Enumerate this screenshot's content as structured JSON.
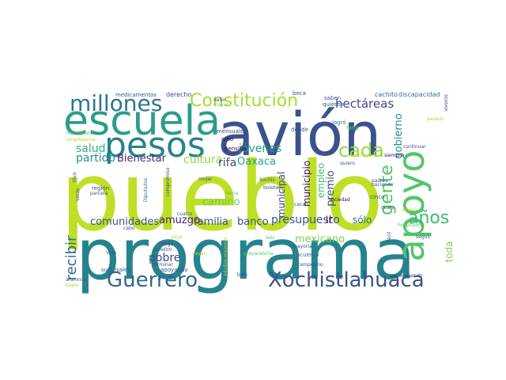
{
  "wordcloud": {
    "words": [
      {
        "text": "pueblo",
        "color": "#bddf26"
      },
      {
        "text": "programa",
        "color": "#25838e"
      },
      {
        "text": "avión",
        "color": "#3b528b"
      },
      {
        "text": "escuela",
        "color": "#2a9d8a"
      },
      {
        "text": "pesos",
        "color": "#25838e"
      },
      {
        "text": "apoyo",
        "color": "#52c569"
      },
      {
        "text": "millones",
        "color": "#2a788e"
      },
      {
        "text": "Constitución",
        "color": "#a8db34"
      },
      {
        "text": "Xochistlahuaca",
        "color": "#3b528b"
      },
      {
        "text": "Guerrero",
        "color": "#31688e"
      },
      {
        "text": "cada",
        "color": "#95d840"
      },
      {
        "text": "gente",
        "color": "#52c569"
      },
      {
        "text": "años",
        "color": "#3fbc73"
      },
      {
        "text": "recibir",
        "color": "#31688e"
      },
      {
        "text": "hectáreas",
        "color": "#3e4a89"
      },
      {
        "text": "cultura",
        "color": "#8fd744"
      },
      {
        "text": "partido",
        "color": "#21918c"
      },
      {
        "text": "Bienestar",
        "color": "#482576"
      },
      {
        "text": "salud",
        "color": "#2db27d"
      },
      {
        "text": "jóvenes",
        "color": "#1f9e89"
      },
      {
        "text": "Oaxaca",
        "color": "#22a884"
      },
      {
        "text": "rifa",
        "color": "#3e4a89"
      },
      {
        "text": "familia",
        "color": "#3e4a89"
      },
      {
        "text": "camino",
        "color": "#6ccd5a"
      },
      {
        "text": "amuzgo",
        "color": "#482475"
      },
      {
        "text": "comunidades",
        "color": "#3b528b"
      },
      {
        "text": "banco",
        "color": "#3b528b"
      },
      {
        "text": "presupuesto",
        "color": "#3b528b"
      },
      {
        "text": "pobre",
        "color": "#3e4a89"
      },
      {
        "text": "mexicano",
        "color": "#7ad151"
      },
      {
        "text": "sólo",
        "color": "#2c728e"
      },
      {
        "text": "ir",
        "color": "#440154"
      },
      {
        "text": "premio",
        "color": "#3b528b"
      },
      {
        "text": "municipal",
        "color": "#3e4a89"
      },
      {
        "text": "municipio",
        "color": "#471365"
      },
      {
        "text": "empleo",
        "color": "#3fbc73"
      },
      {
        "text": "gobierno",
        "color": "#21918c"
      },
      {
        "text": "toda",
        "color": "#7ad151"
      },
      {
        "text": "cachito",
        "color": "#31688e"
      },
      {
        "text": "discapacidad",
        "color": "#2c728e"
      },
      {
        "text": "derecho",
        "color": "#3e4a89"
      },
      {
        "text": "medicamentos",
        "color": "#3b528b"
      },
      {
        "text": "saben",
        "color": "#3b528b"
      },
      {
        "text": "quieren",
        "color": "#3b528b"
      },
      {
        "text": "beca",
        "color": "#3b528b"
      },
      {
        "text": "dónde",
        "color": "#3b528b"
      },
      {
        "text": "logró",
        "color": "#2a788e"
      },
      {
        "text": "falta",
        "color": "#52c569"
      },
      {
        "text": "pensión",
        "color": "#440154"
      },
      {
        "text": "mensuales",
        "color": "#3e4a89"
      },
      {
        "text": "mayor",
        "color": "#7ad151"
      },
      {
        "text": "niño",
        "color": "#440154"
      },
      {
        "text": "helicóptero",
        "color": "#52c569"
      },
      {
        "text": "empresarios",
        "color": "#b5de2b"
      },
      {
        "text": "región",
        "color": "#3e4a89"
      },
      {
        "text": "parcela",
        "color": "#3b528b"
      },
      {
        "text": "Diputados",
        "color": "#2c728e"
      },
      {
        "text": "compromiso",
        "color": "#3e4a89"
      },
      {
        "text": "mujer",
        "color": "#3b528b"
      },
      {
        "text": "tierra",
        "color": "#52c569"
      },
      {
        "text": "Xochis",
        "color": "#3b528b"
      },
      {
        "text": "boletos",
        "color": "#3b528b"
      },
      {
        "text": "quiero",
        "color": "#3b528b"
      },
      {
        "text": "sociedad",
        "color": "#440154"
      },
      {
        "text": "padres",
        "color": "#3b528b"
      },
      {
        "text": "haciendo",
        "color": "#3b528b"
      },
      {
        "text": "cinco",
        "color": "#3b528b"
      },
      {
        "text": "gusto",
        "color": "#3b528b"
      },
      {
        "text": "continuar",
        "color": "#3b528b"
      },
      {
        "text": "siempre",
        "color": "#440154"
      },
      {
        "text": "viveros",
        "color": "#3e4a89"
      },
      {
        "text": "recibiendo",
        "color": "#3b528b"
      },
      {
        "text": "estudiantes",
        "color": "#c2df23"
      },
      {
        "text": "hospitales",
        "color": "#52c569"
      },
      {
        "text": "dinero",
        "color": "#c2df23"
      },
      {
        "text": "fácil",
        "color": "#3b528b"
      },
      {
        "text": "seguir",
        "color": "#3b528b"
      },
      {
        "text": "cuatro",
        "color": "#3b528b"
      },
      {
        "text": "cabo",
        "color": "#3b528b"
      },
      {
        "text": "seis",
        "color": "#52c569"
      },
      {
        "text": "llega",
        "color": "#3b528b"
      },
      {
        "text": "maestro",
        "color": "#3b528b"
      },
      {
        "text": "voya",
        "color": "#a8db34"
      },
      {
        "text": "vayan",
        "color": "#a8db34"
      },
      {
        "text": "Vida",
        "color": "#3b528b"
      },
      {
        "text": "sucursales",
        "color": "#3b528b"
      },
      {
        "text": "apoyando",
        "color": "#3b528b"
      },
      {
        "text": "terminar",
        "color": "#3b528b"
      },
      {
        "text": "adultos mayores",
        "color": "#a8db34"
      },
      {
        "text": "preparatoria",
        "color": "#52c569"
      },
      {
        "text": "acuerdo",
        "color": "#2c728e"
      },
      {
        "text": "mayoría",
        "color": "#3b528b"
      },
      {
        "text": "bien",
        "color": "#3b528b"
      },
      {
        "text": "campesino",
        "color": "#3b528b"
      },
      {
        "text": "cacao",
        "color": "#3b528b"
      },
      {
        "text": "alumnos",
        "color": "#3b528b"
      },
      {
        "text": "bajos",
        "color": "#a8db34"
      },
      {
        "text": "Viva",
        "color": "#3b528b"
      },
      {
        "text": "pasado",
        "color": "#a8db34"
      },
      {
        "text": "vecio",
        "color": "#3b528b"
      },
      {
        "text": "daño",
        "color": "#3b528b"
      }
    ]
  }
}
